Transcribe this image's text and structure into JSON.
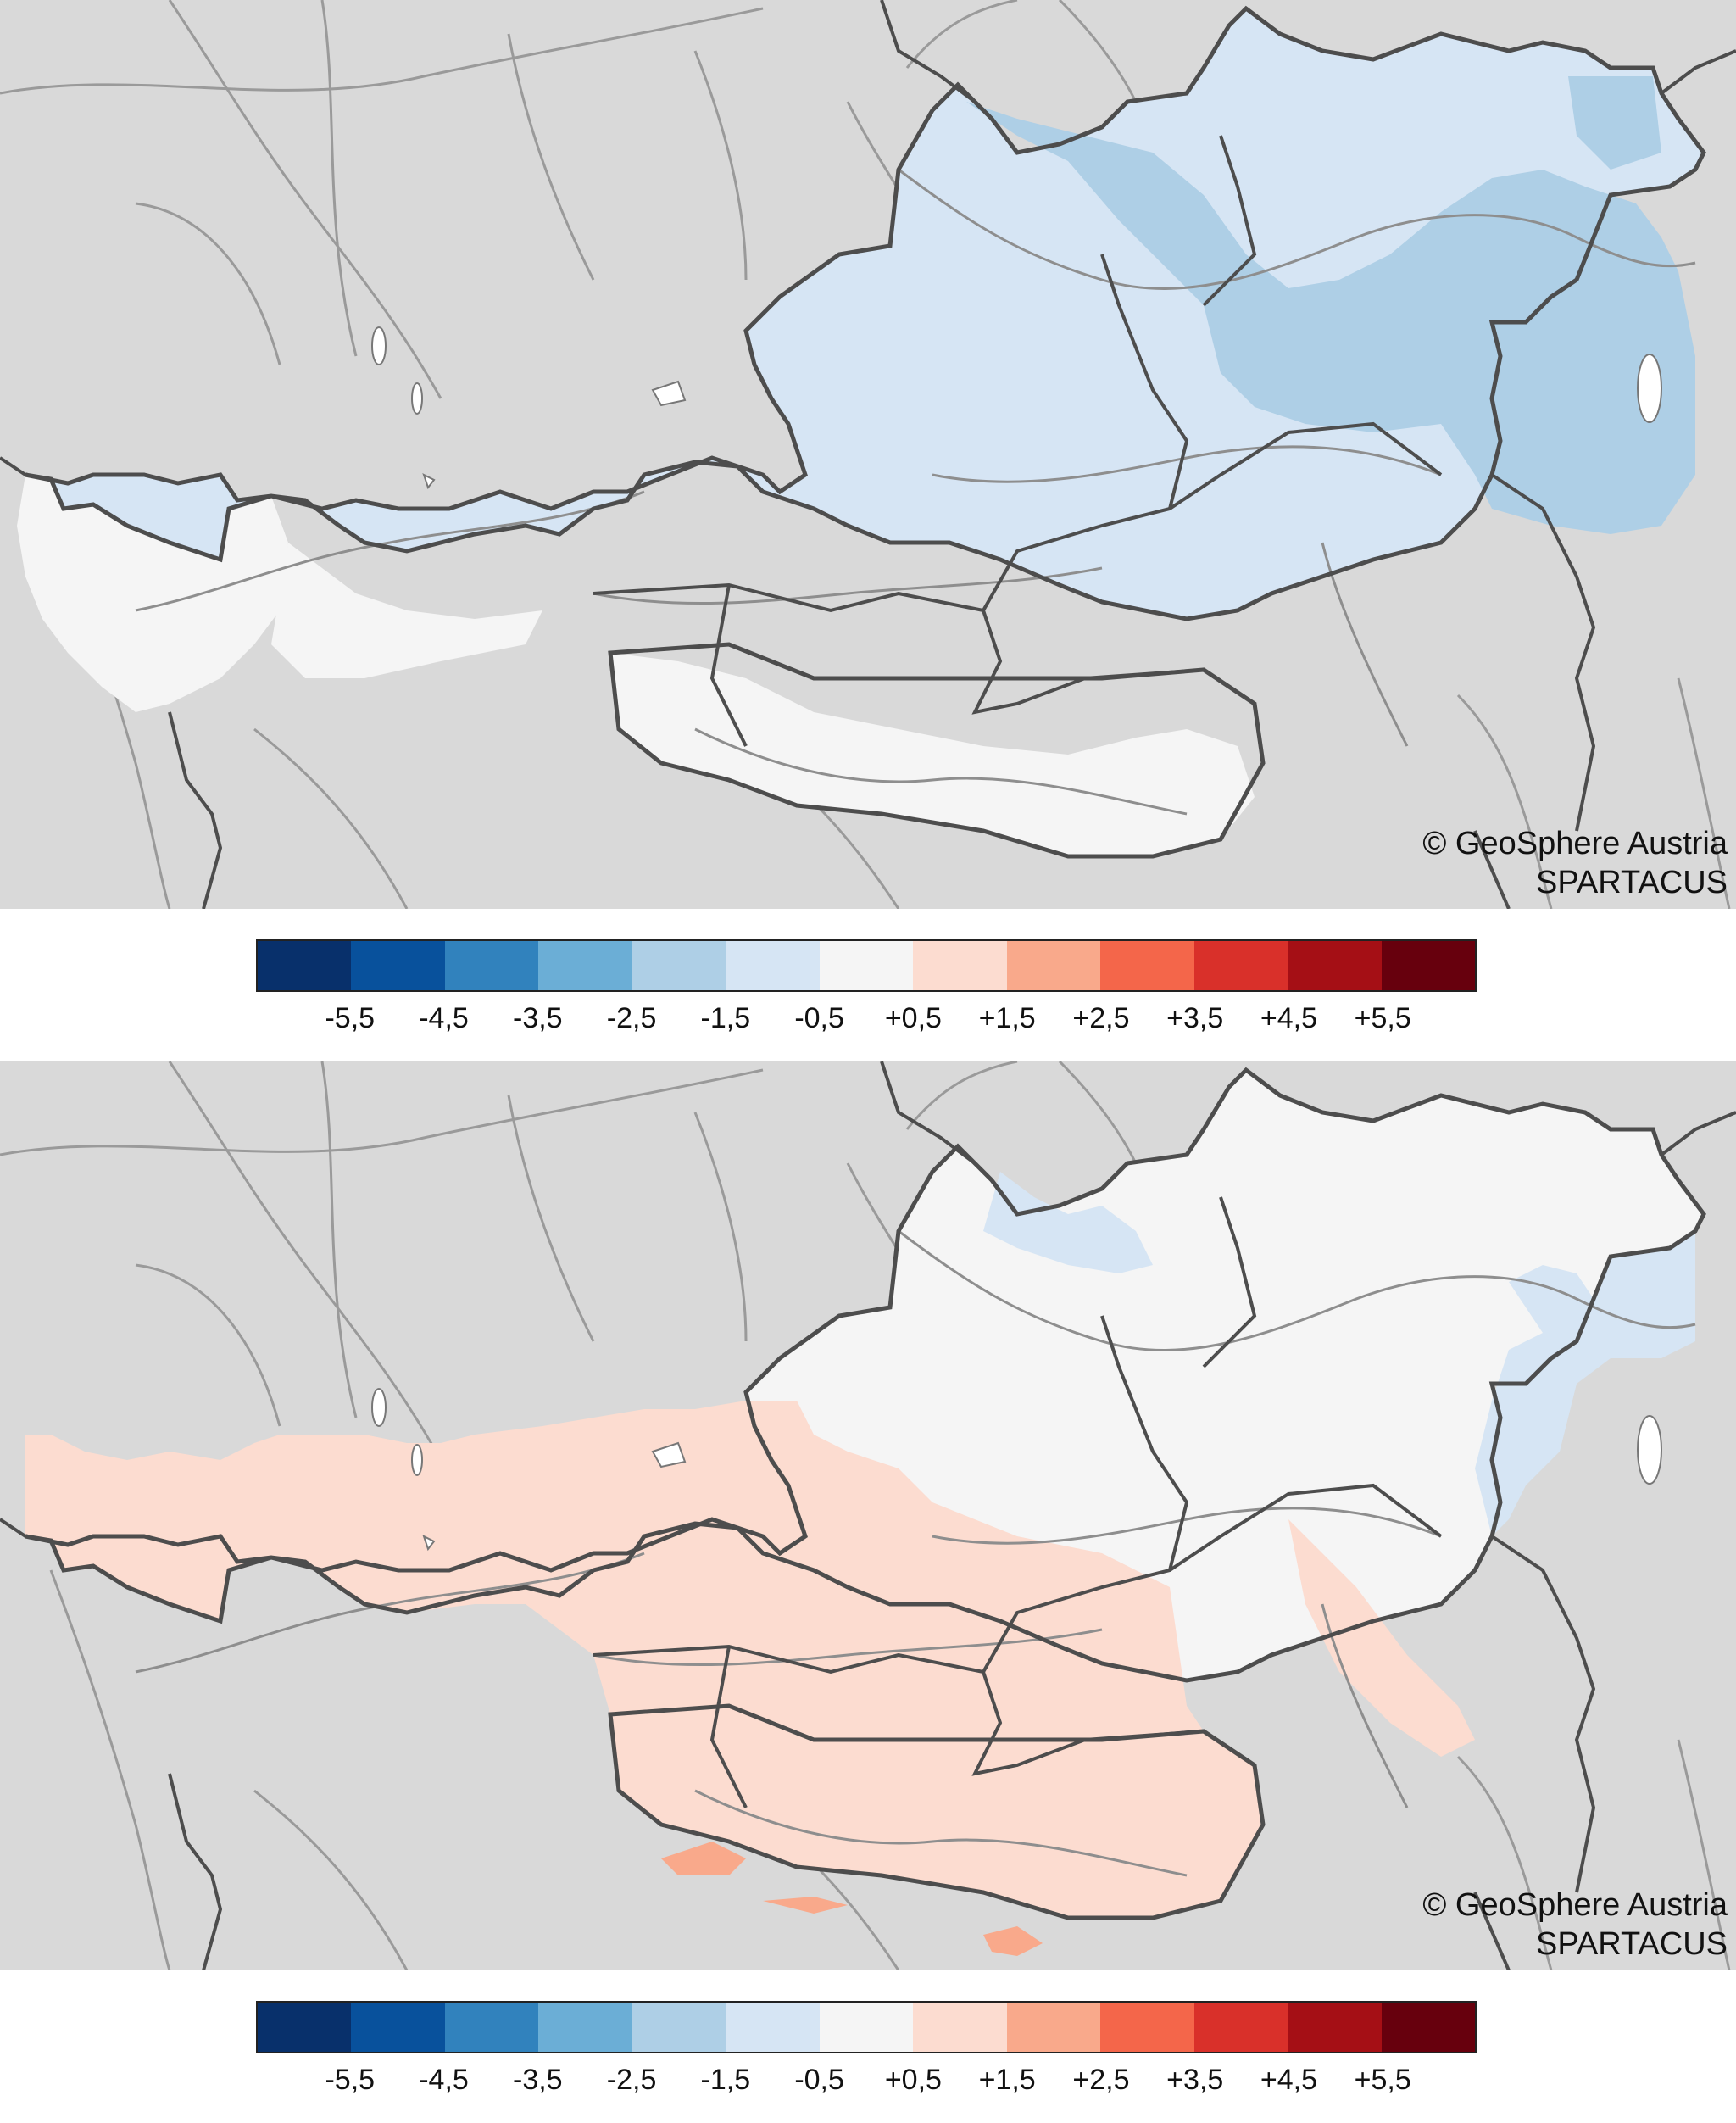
{
  "maps": [
    {
      "id": "top",
      "credit_line1": "© GeoSphere Austria",
      "credit_line2": "SPARTACUS",
      "dominant_class": "-1,5 to -0,5",
      "secondary_classes": [
        "-2,5 to -1,5",
        "-0,5 to +0,5"
      ]
    },
    {
      "id": "bottom",
      "credit_line1": "© GeoSphere Austria",
      "credit_line2": "SPARTACUS",
      "dominant_class": "-0,5 to +0,5",
      "secondary_classes": [
        "+0,5 to +1,5",
        "-1,5 to -0,5",
        "+1,5 to +2,5"
      ]
    }
  ],
  "legend": {
    "colors": [
      "#08306b",
      "#08519c",
      "#3182bd",
      "#6baed6",
      "#aecfe6",
      "#d6e5f4",
      "#f5f5f5",
      "#fcdcd0",
      "#f9a98b",
      "#f4664a",
      "#d9302a",
      "#a50f15",
      "#67000d"
    ],
    "labels": [
      "-5,5",
      "-4,5",
      "-3,5",
      "-2,5",
      "-1,5",
      "-0,5",
      "+0,5",
      "+1,5",
      "+2,5",
      "+3,5",
      "+4,5",
      "+5,5"
    ]
  },
  "colors": {
    "background": "#d9d9d9",
    "border": "#4d4d4d",
    "rivers": "#9a9a9a",
    "lakes": "#ffffff"
  }
}
